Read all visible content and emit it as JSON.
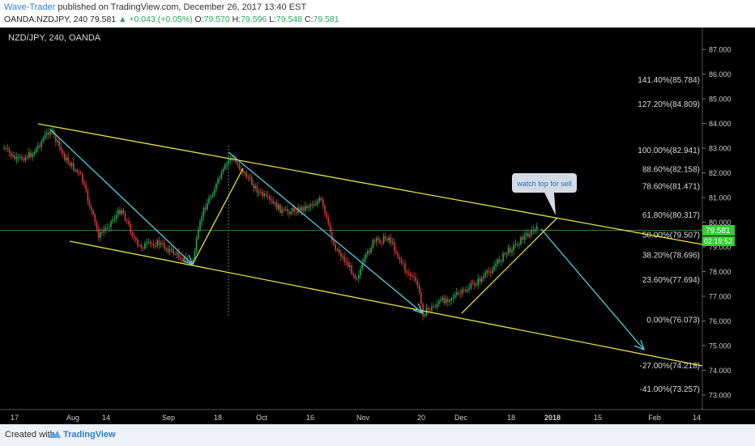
{
  "header": {
    "author": "Wave-Trader",
    "published_text": " published on TradingView.com, December 26, 2017 13:40 EST",
    "symbol": "OANDA:NZDJPY, 240",
    "last": "79.581",
    "change": "▲ +0.043 (+0.05%)",
    "open_label": "O:",
    "open": "79.570",
    "high_label": "H:",
    "high": "79.596",
    "low_label": "L:",
    "low": "79.548",
    "close_label": "C:",
    "close": "79.581"
  },
  "chart_title": "NZD/JPY, 240, OANDA",
  "annotation": "watch top for sell",
  "footer": {
    "created": "Created with",
    "brand": "TradingView"
  },
  "colors": {
    "background": "#000000",
    "channel": "#e6e03c",
    "arrows": "#4dd0e1",
    "price_up": "#26a65b",
    "price_down": "#d63a3a",
    "price_line": "#2e7d32",
    "fib_text": "#dddddd",
    "price_tag": "#33cc33"
  },
  "chart_data": {
    "type": "candlestick",
    "y_axis": {
      "ticks": [
        "87.000",
        "86.000",
        "85.000",
        "84.000",
        "83.000",
        "82.000",
        "81.000",
        "80.000",
        "79.000",
        "78.000",
        "77.000",
        "76.000",
        "75.000",
        "74.000",
        "73.000"
      ],
      "range": [
        72.6,
        87.6
      ]
    },
    "x_axis": {
      "ticks": [
        "17",
        "Aug",
        "14",
        "Sep",
        "18",
        "Oct",
        "16",
        "Nov",
        "20",
        "Dec",
        "18",
        "2018",
        "15",
        "Feb",
        "14"
      ],
      "bold": [
        "2018"
      ]
    },
    "current_price": "79.581",
    "secondary_tag": "02:19:52",
    "fib_levels": [
      {
        "label": "141.40%(85.784)",
        "value": 85.784
      },
      {
        "label": "127.20%(84.809)",
        "value": 84.809
      },
      {
        "label": "100.00%(82.941)",
        "value": 82.941
      },
      {
        "label": "88.60%(82.158)",
        "value": 82.158
      },
      {
        "label": "78.60%(81.471)",
        "value": 81.471
      },
      {
        "label": "61.80%(80.317)",
        "value": 80.317
      },
      {
        "label": "50.00%(79.507)",
        "value": 79.507
      },
      {
        "label": "38.20%(78.696)",
        "value": 78.696
      },
      {
        "label": "23.60%(77.694)",
        "value": 77.694
      },
      {
        "label": "0.00%(76.073)",
        "value": 76.073
      },
      {
        "label": "-27.00%(74.218)",
        "value": 74.218
      },
      {
        "label": "-41.00%(73.257)",
        "value": 73.257
      }
    ]
  }
}
